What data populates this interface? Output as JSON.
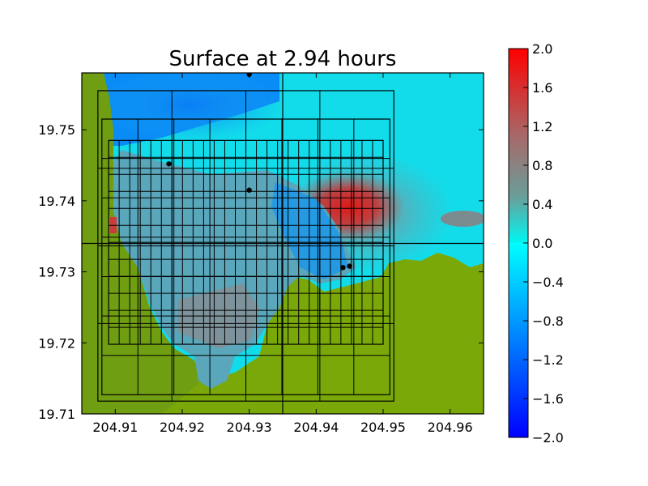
{
  "chart_data": {
    "type": "heatmap",
    "title": "Surface at 2.94 hours",
    "xlabel": "",
    "ylabel": "",
    "xlim": [
      204.905,
      204.965
    ],
    "ylim": [
      19.71,
      19.758
    ],
    "x_ticks": [
      "204.91",
      "204.92",
      "204.93",
      "204.94",
      "204.95",
      "204.96"
    ],
    "x_tick_values": [
      204.91,
      204.92,
      204.93,
      204.94,
      204.95,
      204.96
    ],
    "y_ticks": [
      "19.71",
      "19.72",
      "19.73",
      "19.74",
      "19.75"
    ],
    "y_tick_values": [
      19.71,
      19.72,
      19.73,
      19.74,
      19.75
    ],
    "colorbar": {
      "min": -2.0,
      "max": 2.0,
      "ticks": [
        "2.0",
        "1.6",
        "1.2",
        "0.8",
        "0.4",
        "0.0",
        "−0.4",
        "−0.8",
        "−1.2",
        "−1.6",
        "−2.0"
      ],
      "tick_values": [
        2.0,
        1.6,
        1.2,
        0.8,
        0.4,
        0.0,
        -0.4,
        -0.8,
        -1.2,
        -1.6,
        -2.0
      ],
      "colors": [
        "#0000ff",
        "#00ffff",
        "#ff0000"
      ]
    },
    "land_color": "#7aa808",
    "gauges": [
      {
        "x": 204.93,
        "y": 19.7578
      },
      {
        "x": 204.918,
        "y": 19.7452
      },
      {
        "x": 204.93,
        "y": 19.7415
      },
      {
        "x": 204.944,
        "y": 19.7306
      },
      {
        "x": 204.945,
        "y": 19.7308
      }
    ],
    "grid_boxes": [
      {
        "x0": 204.9074,
        "x1": 204.9516,
        "y0": 19.7118,
        "y1": 19.7555,
        "nx": 4,
        "ny": 4
      },
      {
        "x0": 204.908,
        "x1": 204.951,
        "y0": 19.7127,
        "y1": 19.7515,
        "nx": 8,
        "ny": 7
      },
      {
        "x0": 204.909,
        "x1": 204.95,
        "y0": 19.7198,
        "y1": 19.7485,
        "nx": 26,
        "ny": 12
      }
    ],
    "lines": [
      {
        "x": 204.935
      },
      {
        "y": 19.734
      }
    ]
  }
}
